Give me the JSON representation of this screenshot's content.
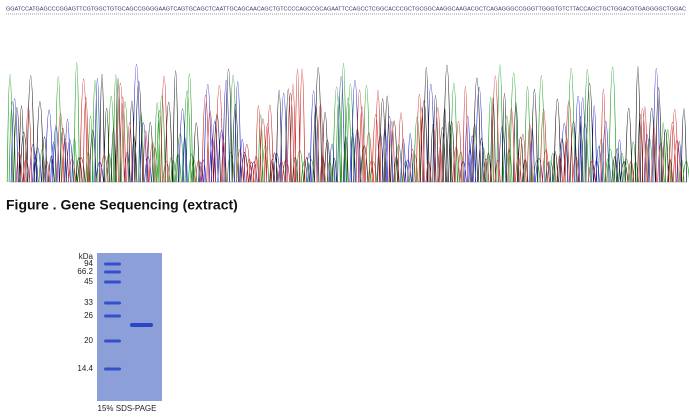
{
  "sequence": "GGATCCATGAGCCCGGAGTTCGTGGCTGTGCAGCCGGGGAAGTCAGTGCAGCTCAATTGCAGCAACAGCTGTCCCCAGCCGCAGAATTCCAGCCTCGGCACCCGCTGCGGCAAGGCAAGACGCTCAGAGGGCCGGGTTGGGTGTCTTACCAGCTGCTGGACGTGAGGGGCTGGAC",
  "caption": "Figure . Gene Sequencing (extract)",
  "gel": {
    "unit_label": "kDa",
    "markers": [
      94,
      66.2,
      45,
      33,
      26,
      20,
      14.4
    ],
    "caption": "15% SDS-PAGE"
  }
}
